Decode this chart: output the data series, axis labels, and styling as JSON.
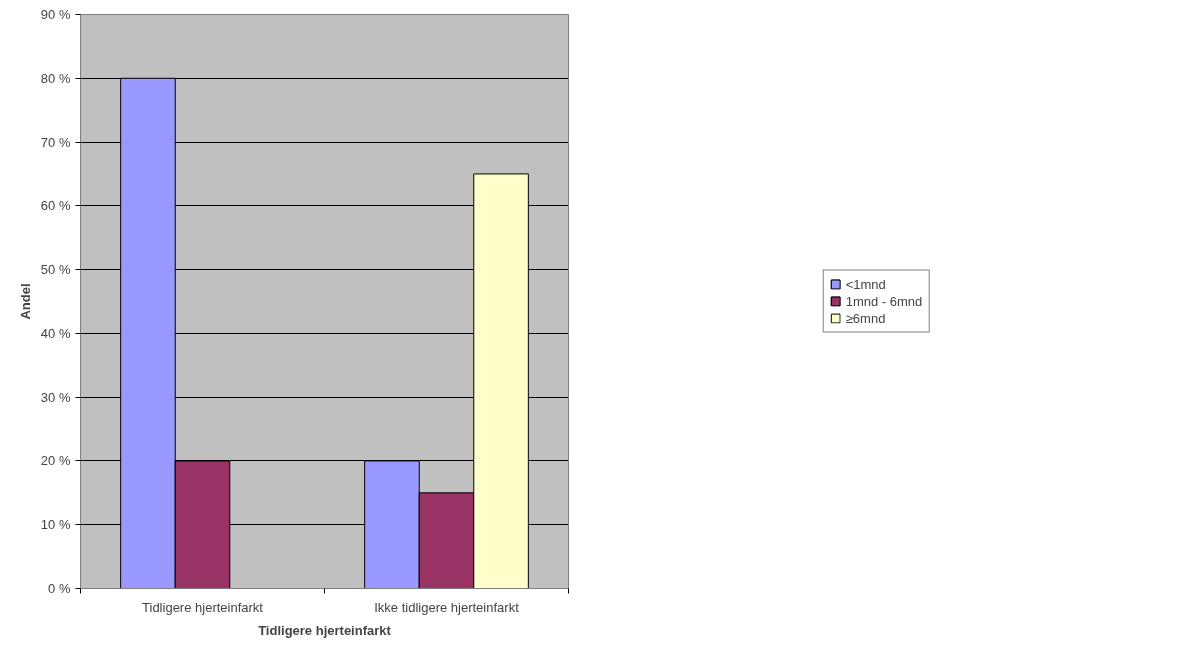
{
  "chart_data": {
    "type": "bar",
    "xlabel": "Tidligere hjerteinfarkt",
    "ylabel": "Andel",
    "categories": [
      "Tidligere hjerteinfarkt",
      "Ikke tidligere hjerteinfarkt"
    ],
    "series": [
      {
        "name": "<1mnd",
        "color": "#9999ff",
        "values": [
          80,
          20
        ]
      },
      {
        "name": "1mnd - 6mnd",
        "color": "#993366",
        "values": [
          20,
          15
        ]
      },
      {
        "name": "≥6mnd",
        "color": "#ffffcc",
        "values": [
          null,
          65
        ]
      }
    ],
    "ylim": [
      0,
      90
    ],
    "yticks": [
      {
        "value": 0,
        "label": "0 %"
      },
      {
        "value": 10,
        "label": "10 %"
      },
      {
        "value": 20,
        "label": "20 %"
      },
      {
        "value": 30,
        "label": "30 %"
      },
      {
        "value": 40,
        "label": "40 %"
      },
      {
        "value": 50,
        "label": "50 %"
      },
      {
        "value": 60,
        "label": "60 %"
      },
      {
        "value": 70,
        "label": "70 %"
      },
      {
        "value": 80,
        "label": "80 %"
      },
      {
        "value": 90,
        "label": "90 %"
      }
    ],
    "grid": "y",
    "legend": "right"
  }
}
